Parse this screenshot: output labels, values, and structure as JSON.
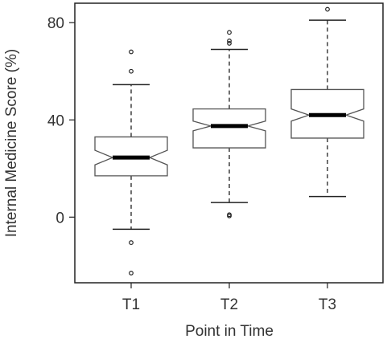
{
  "chart_data": {
    "type": "boxplot",
    "notched": true,
    "xlabel": "Point in Time",
    "ylabel": "Internal Medicine Score (%)",
    "ylim": [
      -27,
      88
    ],
    "yticks": [
      0,
      40,
      80
    ],
    "categories": [
      "T1",
      "T2",
      "T3"
    ],
    "boxes": [
      {
        "category": "T1",
        "whisker_low": -5,
        "q1": 17,
        "median": 24.5,
        "q3": 33,
        "whisker_high": 54.5,
        "notch_low": 21.5,
        "notch_high": 27.5,
        "outliers": [
          60,
          68,
          -10.5,
          -23
        ]
      },
      {
        "category": "T2",
        "whisker_low": 6,
        "q1": 28.5,
        "median": 37.5,
        "q3": 44.5,
        "whisker_high": 69,
        "notch_low": 35.5,
        "notch_high": 39.5,
        "outliers": [
          71.5,
          72.5,
          76,
          1,
          0.5
        ]
      },
      {
        "category": "T3",
        "whisker_low": 8.5,
        "q1": 32.5,
        "median": 42,
        "q3": 52.5,
        "whisker_high": 81,
        "notch_low": 39.5,
        "notch_high": 44.5,
        "outliers": [
          85.5
        ]
      }
    ]
  }
}
